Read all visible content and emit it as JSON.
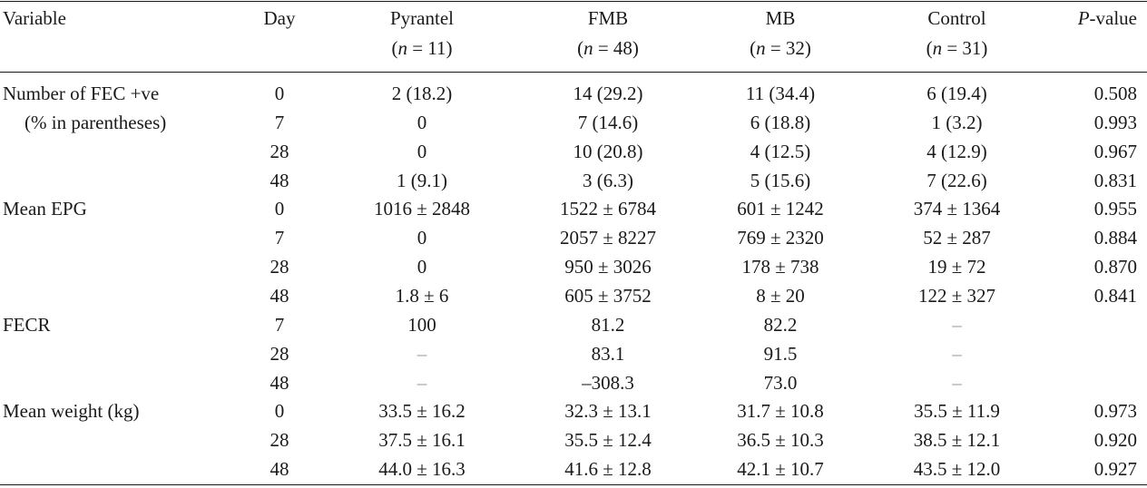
{
  "table": {
    "header": {
      "variable": "Variable",
      "day": "Day",
      "pyrantel": "Pyrantel",
      "pyrantel_n": "11",
      "fmb": "FMB",
      "fmb_n": "48",
      "mb": "MB",
      "mb_n": "32",
      "control": "Control",
      "control_n": "31",
      "n_symbol": "n",
      "n_equals": " = ",
      "p_symbol": "P",
      "p_suffix": "-value"
    },
    "groups": [
      {
        "label": "Number of FEC +ve",
        "sublabel": "(% in parentheses)",
        "rows": [
          {
            "day": "0",
            "pyrantel": "2 (18.2)",
            "fmb": "14 (29.2)",
            "mb": "11 (34.4)",
            "control": "6 (19.4)",
            "p": "0.508"
          },
          {
            "day": "7",
            "pyrantel": "0",
            "fmb": "7 (14.6)",
            "mb": "6 (18.8)",
            "control": "1 (3.2)",
            "p": "0.993"
          },
          {
            "day": "28",
            "pyrantel": "0",
            "fmb": "10 (20.8)",
            "mb": "4 (12.5)",
            "control": "4 (12.9)",
            "p": "0.967"
          },
          {
            "day": "48",
            "pyrantel": "1 (9.1)",
            "fmb": "3 (6.3)",
            "mb": "5 (15.6)",
            "control": "7 (22.6)",
            "p": "0.831"
          }
        ]
      },
      {
        "label": "Mean EPG",
        "rows": [
          {
            "day": "0",
            "pyrantel": "1016 ± 2848",
            "fmb": "1522 ± 6784",
            "mb": "601 ± 1242",
            "control": "374 ± 1364",
            "p": "0.955"
          },
          {
            "day": "7",
            "pyrantel": "0",
            "fmb": "2057 ± 8227",
            "mb": "769 ± 2320",
            "control": "52 ± 287",
            "p": "0.884"
          },
          {
            "day": "28",
            "pyrantel": "0",
            "fmb": "950 ± 3026",
            "mb": "178 ± 738",
            "control": "19 ± 72",
            "p": "0.870"
          },
          {
            "day": "48",
            "pyrantel": "1.8 ± 6",
            "fmb": "605 ± 3752",
            "mb": "8 ± 20",
            "control": "122 ± 327",
            "p": "0.841"
          }
        ]
      },
      {
        "label": "FECR",
        "rows": [
          {
            "day": "7",
            "pyrantel": "100",
            "fmb": "81.2",
            "mb": "82.2",
            "control": "–",
            "p": ""
          },
          {
            "day": "28",
            "pyrantel": "–",
            "fmb": "83.1",
            "mb": "91.5",
            "control": "–",
            "p": ""
          },
          {
            "day": "48",
            "pyrantel": "–",
            "fmb": "–308.3",
            "mb": "73.0",
            "control": "–",
            "p": ""
          }
        ]
      },
      {
        "label": "Mean weight (kg)",
        "rows": [
          {
            "day": "0",
            "pyrantel": "33.5 ± 16.2",
            "fmb": "32.3 ± 13.1",
            "mb": "31.7 ± 10.8",
            "control": "35.5 ± 11.9",
            "p": "0.973"
          },
          {
            "day": "28",
            "pyrantel": "37.5 ± 16.1",
            "fmb": "35.5 ± 12.4",
            "mb": "36.5 ± 10.3",
            "control": "38.5 ± 12.1",
            "p": "0.920"
          },
          {
            "day": "48",
            "pyrantel": "44.0 ± 16.3",
            "fmb": "41.6 ± 12.8",
            "mb": "42.1 ± 10.7",
            "control": "43.5 ± 12.0",
            "p": "0.927"
          }
        ]
      }
    ]
  }
}
